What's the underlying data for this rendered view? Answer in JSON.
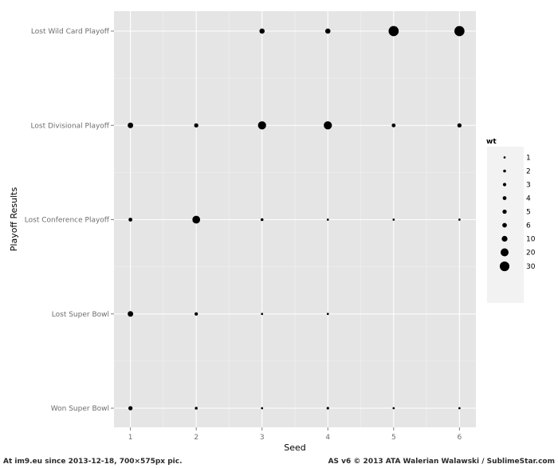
{
  "chart_data": {
    "type": "scatter",
    "title": "",
    "xlabel": "Seed",
    "ylabel": "Playoff Results",
    "x_ticks": [
      1,
      2,
      3,
      4,
      5,
      6
    ],
    "xlim": [
      0.75,
      6.25
    ],
    "y_categories": [
      "Won Super Bowl",
      "Lost Super Bowl",
      "Lost Conference Playoff",
      "Lost Divisional Playoff",
      "Lost Wild Card Playoff"
    ],
    "size_variable": "wt",
    "grid": true,
    "legend_position": "right",
    "legend": {
      "title": "wt",
      "entries": [
        {
          "label": "1",
          "value": 1
        },
        {
          "label": "2",
          "value": 2
        },
        {
          "label": "3",
          "value": 3
        },
        {
          "label": "4",
          "value": 4
        },
        {
          "label": "5",
          "value": 5
        },
        {
          "label": "6",
          "value": 6
        },
        {
          "label": "10",
          "value": 10
        },
        {
          "label": "20",
          "value": 20
        },
        {
          "label": "30",
          "value": 30
        }
      ]
    },
    "points": [
      {
        "x": 3,
        "y": "Lost Wild Card Playoff",
        "wt": 8
      },
      {
        "x": 4,
        "y": "Lost Wild Card Playoff",
        "wt": 8
      },
      {
        "x": 5,
        "y": "Lost Wild Card Playoff",
        "wt": 33
      },
      {
        "x": 6,
        "y": "Lost Wild Card Playoff",
        "wt": 33
      },
      {
        "x": 1,
        "y": "Lost Divisional Playoff",
        "wt": 9
      },
      {
        "x": 2,
        "y": "Lost Divisional Playoff",
        "wt": 5
      },
      {
        "x": 3,
        "y": "Lost Divisional Playoff",
        "wt": 21
      },
      {
        "x": 4,
        "y": "Lost Divisional Playoff",
        "wt": 21
      },
      {
        "x": 5,
        "y": "Lost Divisional Playoff",
        "wt": 4
      },
      {
        "x": 6,
        "y": "Lost Divisional Playoff",
        "wt": 5
      },
      {
        "x": 1,
        "y": "Lost Conference Playoff",
        "wt": 4
      },
      {
        "x": 2,
        "y": "Lost Conference Playoff",
        "wt": 19
      },
      {
        "x": 3,
        "y": "Lost Conference Playoff",
        "wt": 2
      },
      {
        "x": 4,
        "y": "Lost Conference Playoff",
        "wt": 1
      },
      {
        "x": 5,
        "y": "Lost Conference Playoff",
        "wt": 1
      },
      {
        "x": 6,
        "y": "Lost Conference Playoff",
        "wt": 1
      },
      {
        "x": 1,
        "y": "Lost Super Bowl",
        "wt": 9
      },
      {
        "x": 2,
        "y": "Lost Super Bowl",
        "wt": 3
      },
      {
        "x": 3,
        "y": "Lost Super Bowl",
        "wt": 1
      },
      {
        "x": 4,
        "y": "Lost Super Bowl",
        "wt": 1
      },
      {
        "x": 1,
        "y": "Won Super Bowl",
        "wt": 5
      },
      {
        "x": 2,
        "y": "Won Super Bowl",
        "wt": 2
      },
      {
        "x": 3,
        "y": "Won Super Bowl",
        "wt": 1
      },
      {
        "x": 4,
        "y": "Won Super Bowl",
        "wt": 1.5
      },
      {
        "x": 5,
        "y": "Won Super Bowl",
        "wt": 1
      },
      {
        "x": 6,
        "y": "Won Super Bowl",
        "wt": 1
      }
    ],
    "colors": {
      "panel": "#e5e5e5",
      "grid_major": "#ffffff",
      "grid_minor": "#f2f2f2",
      "point": "#000000",
      "tick_text": "#6e6e6e"
    }
  },
  "footer": {
    "left": "At im9.eu  since 2013-12-18, 700×575px pic.",
    "right": "AS v6 © 2013 ATA Walerian Walawski / SublimeStar.com"
  }
}
